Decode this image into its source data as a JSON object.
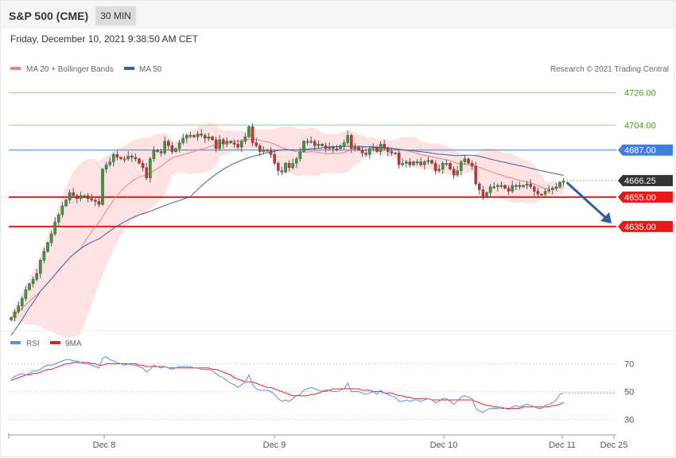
{
  "header": {
    "title": "S&P 500 (CME)",
    "interval": "30 MIN"
  },
  "timestamp": "Friday, December 10, 2021 9:38:50 AM CET",
  "copyright": "Research © 2021 Trading Central",
  "colors": {
    "candle_up": "#3a9a3a",
    "candle_down": "#d32f2f",
    "bollinger_fill": "#ffdcdc",
    "ma20": "#f08080",
    "ma50": "#3b5ea8",
    "resistance": "#9bd27f",
    "pivot": "#3d7ee0",
    "support": "#e81919",
    "rsi": "#5b8ee6",
    "rsi_ma": "#e32020",
    "arrow": "#2f5e9e"
  },
  "chart_data": [
    {
      "type": "candlestick",
      "legend": [
        "MA 20 + Bollinger Bands",
        "MA 50"
      ],
      "price_levels": [
        {
          "value": 4726.0,
          "label": "4726.00",
          "kind": "resistance"
        },
        {
          "value": 4704.0,
          "label": "4704.00",
          "kind": "resistance"
        },
        {
          "value": 4687.0,
          "label": "4687.00",
          "kind": "pivot"
        },
        {
          "value": 4666.25,
          "label": "4666.25",
          "kind": "current"
        },
        {
          "value": 4655.0,
          "label": "4655.00",
          "kind": "support"
        },
        {
          "value": 4635.0,
          "label": "4635.00",
          "kind": "support"
        }
      ],
      "forecast_arrow": {
        "from": 4665,
        "to": 4636
      },
      "y_range": [
        4570,
        4735
      ],
      "x_ticks": [
        "Dec 8",
        "Dec 9",
        "Dec 10",
        "Dec 11",
        "Dec 25"
      ],
      "close": [
        4573,
        4577,
        4581,
        4586,
        4592,
        4596,
        4599,
        4603,
        4612,
        4618,
        4624,
        4630,
        4638,
        4643,
        4649,
        4653,
        4658,
        4656,
        4654,
        4656,
        4656,
        4654,
        4653,
        4652,
        4650,
        4674,
        4677,
        4679,
        4684,
        4682,
        4681,
        4681,
        4683,
        4682,
        4681,
        4678,
        4675,
        4668,
        4681,
        4687,
        4686,
        4685,
        4693,
        4690,
        4686,
        4688,
        4692,
        4695,
        4697,
        4697,
        4696,
        4698,
        4697,
        4695,
        4696,
        4694,
        4688,
        4694,
        4691,
        4693,
        4692,
        4691,
        4689,
        4693,
        4696,
        4703,
        4692,
        4690,
        4686,
        4687,
        4687,
        4684,
        4678,
        4673,
        4672,
        4678,
        4675,
        4678,
        4681,
        4686,
        4693,
        4693,
        4693,
        4690,
        4691,
        4690,
        4688,
        4689,
        4688,
        4688,
        4690,
        4692,
        4697,
        4688,
        4689,
        4687,
        4685,
        4684,
        4688,
        4689,
        4686,
        4691,
        4688,
        4686,
        4685,
        4685,
        4677,
        4678,
        4679,
        4677,
        4679,
        4679,
        4677,
        4679,
        4680,
        4678,
        4673,
        4674,
        4678,
        4678,
        4674,
        4670,
        4673,
        4679,
        4681,
        4678,
        4676,
        4664,
        4660,
        4655,
        4658,
        4662,
        4662,
        4663,
        4663,
        4661,
        4659,
        4663,
        4663,
        4662,
        4663,
        4664,
        4662,
        4659,
        4657,
        4657,
        4659,
        4660,
        4661,
        4662,
        4665,
        4666
      ]
    },
    {
      "type": "line",
      "series": [
        {
          "name": "RSI"
        },
        {
          "name": "9MA"
        }
      ],
      "y_range": [
        20,
        80
      ],
      "y_ticks": [
        70,
        50,
        30
      ],
      "rsi": [
        59,
        61,
        62,
        63,
        62,
        63,
        65,
        65,
        66,
        68,
        69,
        69,
        70,
        71,
        72,
        73,
        73,
        72,
        72,
        71,
        70,
        70,
        69,
        68,
        67,
        74,
        75,
        73,
        72,
        71,
        70,
        69,
        70,
        69,
        69,
        68,
        67,
        64,
        66,
        69,
        68,
        67,
        68,
        67,
        66,
        67,
        68,
        68,
        68,
        68,
        67,
        67,
        66,
        66,
        66,
        65,
        63,
        61,
        60,
        58,
        56,
        55,
        53,
        55,
        57,
        62,
        55,
        52,
        51,
        51,
        51,
        50,
        48,
        45,
        43,
        44,
        43,
        45,
        47,
        48,
        51,
        52,
        53,
        52,
        51,
        50,
        50,
        51,
        50,
        50,
        51,
        52,
        56,
        50,
        50,
        50,
        49,
        48,
        49,
        50,
        48,
        51,
        49,
        48,
        47,
        46,
        43,
        43,
        44,
        43,
        44,
        44,
        43,
        44,
        45,
        44,
        42,
        43,
        45,
        45,
        43,
        41,
        43,
        46,
        47,
        46,
        45,
        38,
        36,
        35,
        37,
        38,
        38,
        38,
        39,
        38,
        37,
        39,
        40,
        39,
        40,
        41,
        40,
        39,
        38,
        38,
        40,
        41,
        42,
        44,
        48,
        49
      ],
      "ma9": [
        58,
        59,
        60,
        61,
        62,
        62,
        63,
        63,
        64,
        65,
        66,
        66,
        67,
        68,
        69,
        70,
        70,
        71,
        71,
        71,
        71,
        71,
        70,
        70,
        69,
        69,
        70,
        70,
        70,
        70,
        70,
        70,
        70,
        70,
        70,
        69,
        69,
        68,
        68,
        68,
        68,
        68,
        68,
        67,
        67,
        67,
        67,
        67,
        67,
        67,
        67,
        67,
        67,
        67,
        67,
        66,
        66,
        65,
        64,
        63,
        62,
        60,
        59,
        58,
        57,
        57,
        57,
        56,
        55,
        54,
        53,
        53,
        52,
        51,
        50,
        49,
        48,
        47,
        47,
        47,
        47,
        47,
        48,
        48,
        49,
        50,
        51,
        51,
        52,
        52,
        52,
        52,
        52,
        52,
        52,
        52,
        51,
        51,
        51,
        50,
        50,
        50,
        49,
        49,
        49,
        48,
        47,
        47,
        46,
        46,
        45,
        45,
        45,
        45,
        45,
        44,
        44,
        44,
        44,
        44,
        44,
        44,
        44,
        44,
        44,
        44,
        44,
        43,
        42,
        41,
        40,
        40,
        39,
        39,
        38,
        38,
        38,
        38,
        38,
        38,
        39,
        39,
        39,
        39,
        39,
        39,
        39,
        39,
        40,
        40,
        41,
        42
      ]
    }
  ]
}
